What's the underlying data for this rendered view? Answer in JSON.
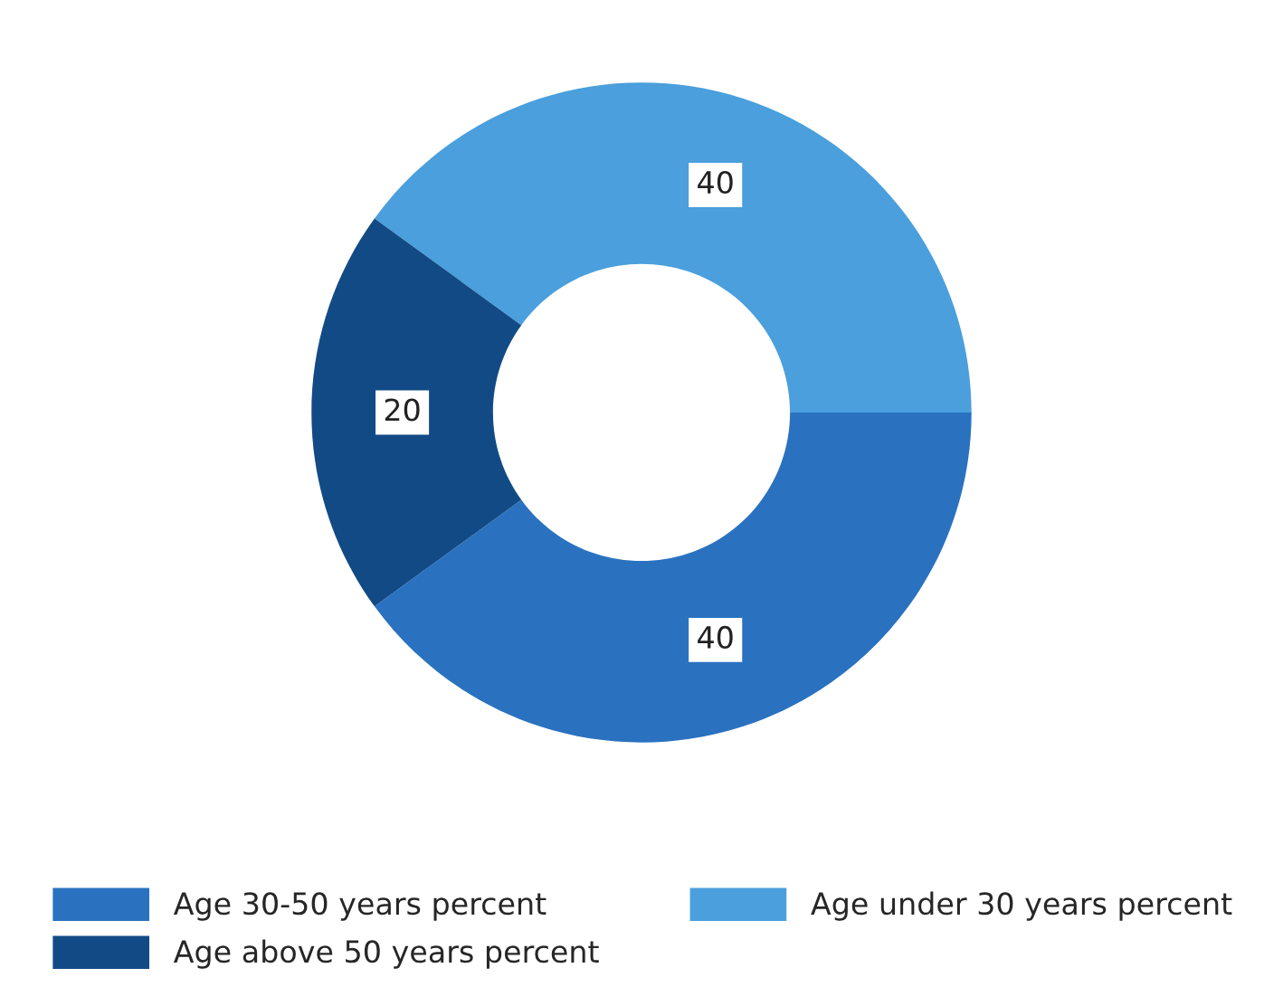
{
  "chart_data": {
    "type": "donut",
    "categories": [
      "Age 30-50 years percent",
      "Age under 30 years percent",
      "Age above 50 years percent"
    ],
    "values": [
      40,
      40,
      20
    ],
    "colors": [
      "#2a72c0",
      "#4a9fdc",
      "#124a86"
    ],
    "data_labels": true,
    "legend": "bottom"
  }
}
